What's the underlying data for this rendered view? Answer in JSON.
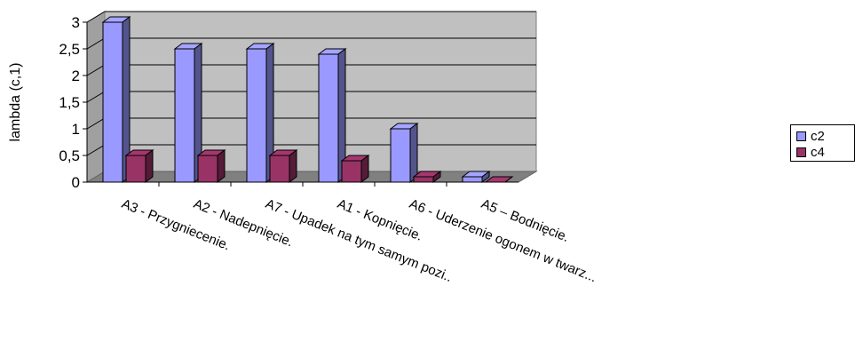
{
  "chart_data": {
    "type": "bar",
    "categories": [
      "A3 - Przygniecenie.",
      "A2 - Nadepnięcie.",
      "A7 - Upadek na tym samym pozi..",
      "A1 - Kopnięcie.",
      "A6 - Uderzenie ogonem w twarz...",
      "A5 – Bodnięcie."
    ],
    "series": [
      {
        "name": "c2",
        "values": [
          3.0,
          2.5,
          2.5,
          2.4,
          1.0,
          0.1
        ],
        "color": "#9999ff"
      },
      {
        "name": "c4",
        "values": [
          0.5,
          0.5,
          0.5,
          0.4,
          0.1,
          0.0
        ],
        "color": "#993366"
      }
    ],
    "ylabel": "lambda (c,1)",
    "ylim": [
      0,
      3
    ],
    "yticks": [
      "0",
      "0,5",
      "1",
      "1,5",
      "2",
      "2,5",
      "3"
    ],
    "grid": true,
    "legend": "right",
    "wall_color": "#c0c0c0",
    "floor_color": "#808080"
  }
}
